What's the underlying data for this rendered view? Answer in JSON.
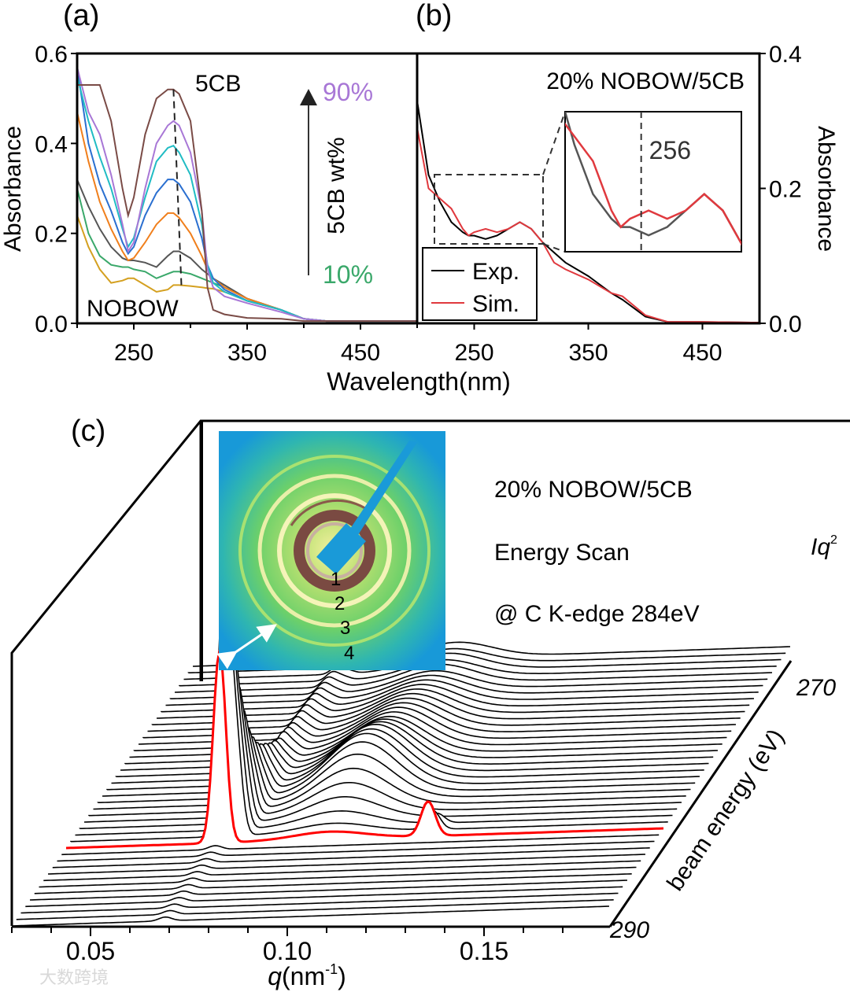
{
  "chart_data": [
    {
      "panel": "(a)",
      "type": "line",
      "xlabel": "Wavelength(nm)",
      "ylabel": "Absorbance",
      "xlim": [
        200,
        500
      ],
      "ylim": [
        0,
        0.6
      ],
      "xticks": [
        "250",
        "350",
        "450"
      ],
      "xtick_values": [
        250,
        350,
        450
      ],
      "yticks": [
        "0.0",
        "0.2",
        "0.4",
        "0.6"
      ],
      "ytick_values": [
        0,
        0.2,
        0.4,
        0.6
      ],
      "annotations": {
        "top": "5CB",
        "bottom": "NOBOW",
        "arrow_label": "5CB wt%",
        "high": "90%",
        "low": "10%"
      },
      "annotation_colors": {
        "high": "#a877d6",
        "low": "#3aa86a"
      },
      "x": [
        200,
        210,
        220,
        230,
        240,
        245,
        250,
        260,
        270,
        280,
        285,
        290,
        300,
        310,
        315,
        320,
        330,
        350,
        380,
        400,
        420,
        450,
        500
      ],
      "series": [
        {
          "name": "5CB",
          "color": "#7a4b46",
          "values": [
            0.53,
            0.53,
            0.53,
            0.45,
            0.3,
            0.24,
            0.28,
            0.42,
            0.5,
            0.52,
            0.52,
            0.51,
            0.45,
            0.25,
            0.08,
            0.03,
            0.02,
            0.012,
            0.01,
            0.005,
            0.005,
            0.005,
            0.005
          ]
        },
        {
          "name": "90%",
          "color": "#a877d6",
          "values": [
            0.57,
            0.47,
            0.42,
            0.33,
            0.22,
            0.16,
            0.18,
            0.3,
            0.4,
            0.44,
            0.45,
            0.44,
            0.38,
            0.25,
            0.12,
            0.08,
            0.06,
            0.045,
            0.025,
            0.01,
            0.005,
            0.005,
            0.005
          ]
        },
        {
          "name": "cyan",
          "color": "#20bcc4",
          "values": [
            0.55,
            0.45,
            0.37,
            0.3,
            0.21,
            0.17,
            0.19,
            0.28,
            0.36,
            0.39,
            0.395,
            0.38,
            0.33,
            0.22,
            0.13,
            0.09,
            0.07,
            0.05,
            0.03,
            0.01,
            0.005,
            0.005,
            0.005
          ]
        },
        {
          "name": "blue",
          "color": "#2a6fd0",
          "values": [
            0.57,
            0.4,
            0.31,
            0.25,
            0.18,
            0.155,
            0.17,
            0.24,
            0.29,
            0.32,
            0.32,
            0.31,
            0.27,
            0.19,
            0.13,
            0.1,
            0.075,
            0.05,
            0.03,
            0.01,
            0.005,
            0.005,
            0.005
          ]
        },
        {
          "name": "orange",
          "color": "#f07f1c",
          "values": [
            0.47,
            0.36,
            0.27,
            0.21,
            0.16,
            0.14,
            0.145,
            0.18,
            0.22,
            0.245,
            0.245,
            0.235,
            0.2,
            0.15,
            0.12,
            0.1,
            0.08,
            0.055,
            0.03,
            0.01,
            0.005,
            0.005,
            0.005
          ]
        },
        {
          "name": "gray",
          "color": "#555555",
          "values": [
            0.32,
            0.26,
            0.21,
            0.17,
            0.145,
            0.14,
            0.14,
            0.135,
            0.125,
            0.15,
            0.16,
            0.16,
            0.145,
            0.12,
            0.11,
            0.1,
            0.085,
            0.055,
            0.03,
            0.01,
            0.005,
            0.005,
            0.005
          ]
        },
        {
          "name": "10%",
          "color": "#3aa86a",
          "values": [
            0.3,
            0.2,
            0.15,
            0.13,
            0.125,
            0.125,
            0.12,
            0.115,
            0.1,
            0.11,
            0.115,
            0.115,
            0.11,
            0.1,
            0.095,
            0.09,
            0.08,
            0.055,
            0.03,
            0.01,
            0.005,
            0.005,
            0.005
          ]
        },
        {
          "name": "NOBOW",
          "color": "#d4a020",
          "values": [
            0.24,
            0.17,
            0.12,
            0.09,
            0.095,
            0.1,
            0.1,
            0.085,
            0.07,
            0.075,
            0.085,
            0.085,
            0.083,
            0.08,
            0.078,
            0.077,
            0.07,
            0.05,
            0.03,
            0.01,
            0.005,
            0.005,
            0.005
          ]
        }
      ],
      "dashed_guide": {
        "from": [
          285,
          0.52
        ],
        "to": [
          292,
          0.085
        ]
      }
    },
    {
      "panel": "(b)",
      "type": "line",
      "title": "20% NOBOW/5CB",
      "ylabel": "Absorbance",
      "xlim": [
        200,
        500
      ],
      "ylim": [
        0,
        0.4
      ],
      "xticks": [
        "250",
        "350",
        "450"
      ],
      "xtick_values": [
        250,
        350,
        450
      ],
      "yticks": [
        "0.0",
        "0.2",
        "0.4"
      ],
      "ytick_values": [
        0,
        0.2,
        0.4
      ],
      "legend": {
        "position": "bottom-left",
        "entries": [
          "Exp.",
          "Sim."
        ]
      },
      "x": [
        200,
        210,
        220,
        230,
        240,
        245,
        250,
        260,
        270,
        280,
        290,
        300,
        310,
        320,
        330,
        350,
        370,
        380,
        400,
        420,
        450,
        500
      ],
      "series": [
        {
          "name": "Exp.",
          "color": "#000000",
          "values": [
            0.33,
            0.22,
            0.18,
            0.15,
            0.135,
            0.13,
            0.13,
            0.125,
            0.13,
            0.14,
            0.15,
            0.14,
            0.12,
            0.105,
            0.09,
            0.07,
            0.045,
            0.035,
            0.01,
            0.002,
            0.002,
            0.001
          ]
        },
        {
          "name": "Sim.",
          "color": "#e0393e",
          "values": [
            0.29,
            0.2,
            0.185,
            0.17,
            0.14,
            0.13,
            0.135,
            0.14,
            0.135,
            0.14,
            0.15,
            0.14,
            0.12,
            0.09,
            0.08,
            0.065,
            0.045,
            0.04,
            0.012,
            0.002,
            0.002,
            0.001
          ]
        }
      ],
      "inset": {
        "xlim": [
          215,
          310
        ],
        "ylim": [
          0.115,
          0.2
        ],
        "marker_x": 256,
        "marker_label": "256"
      }
    },
    {
      "panel": "(c)",
      "type": "line",
      "title": "20% NOBOW/5CB",
      "subtitle": "Energy Scan",
      "note": "@ C K-edge 284eV",
      "xlabel_var": "q",
      "xlabel_unit": "(nm",
      "xlabel_exp": "-1",
      "xlabel_close": ")",
      "zlabel": "Iq",
      "zlabel_exp": "2",
      "ylabel": "beam energy (eV)",
      "energy_ticks": [
        "270",
        "290"
      ],
      "xlim": [
        0.03,
        0.182
      ],
      "xticks": [
        "0.05",
        "0.10",
        "0.15"
      ],
      "xtick_values": [
        0.05,
        0.1,
        0.15
      ],
      "highlight_energy": 284,
      "highlight_color": "#ff0000",
      "energies": [
        270,
        270.5,
        271,
        271.5,
        272,
        272.5,
        273,
        273.5,
        274,
        274.5,
        275,
        275.5,
        276,
        276.5,
        277,
        277.5,
        278,
        278.5,
        279,
        279.5,
        280,
        280.5,
        281,
        281.5,
        282,
        282.5,
        283,
        283.5,
        284,
        284.5,
        285,
        285.5,
        286,
        286.5,
        287,
        287.5,
        288,
        288.5,
        289,
        289.5,
        290
      ],
      "peak_q": 0.069,
      "peak_intensity": [
        0.03,
        0.035,
        0.04,
        0.045,
        0.05,
        0.055,
        0.06,
        0.065,
        0.07,
        0.072,
        0.075,
        0.078,
        0.08,
        0.09,
        0.1,
        0.1,
        0.12,
        0.14,
        0.17,
        0.2,
        0.24,
        0.3,
        0.38,
        0.5,
        0.65,
        0.85,
        1.1,
        1.35,
        1.0,
        0.02,
        0.02,
        0.02,
        0.02,
        0.02,
        0.02,
        0.02,
        0.02,
        0.02,
        0.02,
        0.02,
        0.02
      ],
      "hump_q": 0.097,
      "hump_intensity": [
        0.08,
        0.08,
        0.09,
        0.09,
        0.1,
        0.1,
        0.11,
        0.12,
        0.13,
        0.14,
        0.15,
        0.16,
        0.17,
        0.18,
        0.19,
        0.2,
        0.22,
        0.24,
        0.26,
        0.27,
        0.28,
        0.27,
        0.24,
        0.2,
        0.16,
        0.12,
        0.08,
        0.05,
        0.04,
        0,
        0,
        0,
        0,
        0,
        0,
        0,
        0,
        0,
        0,
        0,
        0
      ],
      "peak2_q": 0.122,
      "peak2_intensity": [
        0,
        0,
        0,
        0,
        0,
        0,
        0,
        0,
        0,
        0,
        0,
        0,
        0,
        0,
        0,
        0,
        0,
        0,
        0,
        0,
        0,
        0,
        0,
        0,
        0,
        0,
        0.05,
        0.1,
        0.18,
        0,
        0,
        0,
        0,
        0,
        0,
        0,
        0,
        0,
        0,
        0,
        0
      ],
      "inset_labels": [
        "1",
        "2",
        "3",
        "4"
      ]
    }
  ],
  "panel_labels": [
    "(a)",
    "(b)",
    "(c)"
  ],
  "watermark": "大数跨境"
}
